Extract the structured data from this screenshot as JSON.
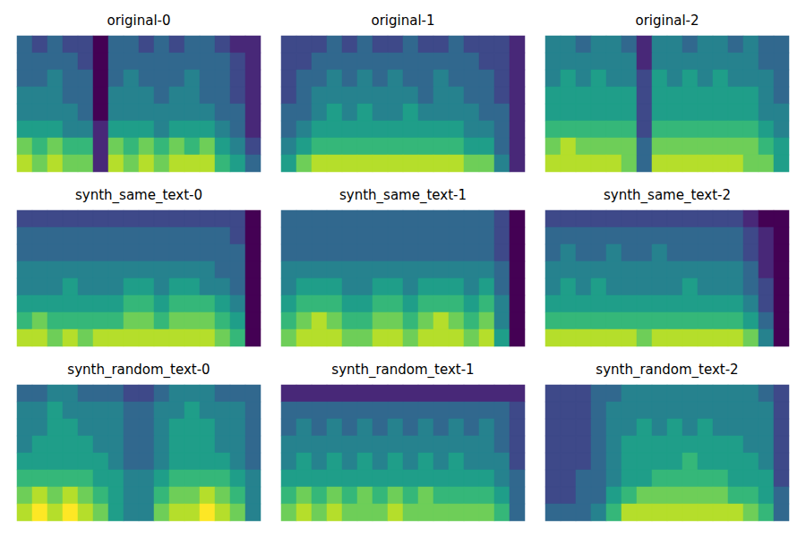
{
  "chart_data": [
    {
      "type": "heatmap",
      "title": "original-0",
      "color": "viridis",
      "tick_labels": false,
      "cells": [
        [
          3,
          2,
          3,
          2,
          2,
          0,
          3,
          3,
          2,
          3,
          2,
          3,
          3,
          2,
          1,
          1
        ],
        [
          3,
          3,
          3,
          3,
          2,
          0,
          3,
          3,
          3,
          3,
          3,
          3,
          3,
          3,
          2,
          1
        ],
        [
          3,
          3,
          4,
          3,
          3,
          0,
          3,
          4,
          3,
          3,
          3,
          4,
          3,
          3,
          2,
          1
        ],
        [
          4,
          4,
          4,
          3,
          3,
          0,
          4,
          4,
          4,
          3,
          4,
          4,
          3,
          3,
          2,
          1
        ],
        [
          4,
          4,
          4,
          4,
          3,
          0,
          4,
          4,
          4,
          4,
          4,
          4,
          4,
          3,
          3,
          1
        ],
        [
          5,
          5,
          5,
          4,
          4,
          1,
          5,
          5,
          5,
          4,
          5,
          5,
          5,
          4,
          3,
          1
        ],
        [
          7,
          6,
          7,
          6,
          6,
          1,
          7,
          6,
          7,
          6,
          7,
          6,
          7,
          5,
          4,
          2
        ],
        [
          8,
          7,
          8,
          7,
          7,
          1,
          8,
          7,
          8,
          7,
          8,
          8,
          8,
          6,
          5,
          3
        ]
      ]
    },
    {
      "type": "heatmap",
      "title": "original-1",
      "color": "viridis",
      "tick_labels": false,
      "cells": [
        [
          2,
          2,
          2,
          3,
          2,
          3,
          2,
          2,
          3,
          2,
          2,
          3,
          2,
          2,
          2,
          1
        ],
        [
          2,
          2,
          3,
          3,
          3,
          3,
          3,
          3,
          3,
          3,
          3,
          3,
          3,
          2,
          2,
          1
        ],
        [
          2,
          3,
          3,
          4,
          3,
          4,
          3,
          4,
          3,
          3,
          4,
          3,
          3,
          3,
          2,
          1
        ],
        [
          2,
          3,
          4,
          4,
          4,
          4,
          4,
          4,
          4,
          3,
          4,
          4,
          3,
          3,
          2,
          1
        ],
        [
          3,
          3,
          4,
          5,
          4,
          5,
          4,
          4,
          5,
          4,
          4,
          4,
          4,
          3,
          3,
          1
        ],
        [
          3,
          4,
          5,
          5,
          5,
          5,
          5,
          5,
          5,
          5,
          5,
          5,
          4,
          4,
          3,
          1
        ],
        [
          4,
          5,
          6,
          6,
          6,
          6,
          6,
          6,
          6,
          6,
          6,
          6,
          5,
          5,
          3,
          1
        ],
        [
          5,
          7,
          8,
          8,
          8,
          8,
          8,
          8,
          8,
          8,
          8,
          8,
          7,
          7,
          4,
          1
        ]
      ]
    },
    {
      "type": "heatmap",
      "title": "original-2",
      "color": "viridis",
      "tick_labels": false,
      "cells": [
        [
          4,
          4,
          3,
          4,
          4,
          3,
          1,
          4,
          4,
          3,
          4,
          4,
          3,
          4,
          3,
          3
        ],
        [
          4,
          4,
          4,
          4,
          4,
          4,
          1,
          4,
          4,
          4,
          4,
          4,
          4,
          4,
          3,
          3
        ],
        [
          4,
          5,
          4,
          5,
          4,
          4,
          2,
          5,
          4,
          5,
          4,
          5,
          4,
          4,
          4,
          3
        ],
        [
          5,
          5,
          5,
          5,
          5,
          5,
          2,
          5,
          5,
          5,
          5,
          5,
          5,
          5,
          4,
          3
        ],
        [
          5,
          5,
          5,
          5,
          5,
          5,
          2,
          5,
          5,
          5,
          5,
          5,
          5,
          5,
          4,
          4
        ],
        [
          6,
          6,
          6,
          6,
          6,
          6,
          2,
          6,
          6,
          6,
          6,
          6,
          6,
          6,
          5,
          4
        ],
        [
          7,
          8,
          7,
          7,
          7,
          7,
          3,
          7,
          7,
          7,
          7,
          7,
          7,
          7,
          6,
          5
        ],
        [
          8,
          8,
          8,
          8,
          8,
          7,
          3,
          8,
          8,
          8,
          8,
          8,
          8,
          7,
          7,
          5
        ]
      ]
    },
    {
      "type": "heatmap",
      "title": "synth_same_text-0",
      "color": "viridis",
      "tick_labels": false,
      "cells": [
        [
          2,
          2,
          2,
          2,
          2,
          2,
          2,
          2,
          2,
          2,
          2,
          2,
          2,
          2,
          2,
          0
        ],
        [
          3,
          3,
          3,
          3,
          3,
          3,
          3,
          3,
          3,
          3,
          3,
          3,
          3,
          3,
          2,
          0
        ],
        [
          3,
          3,
          3,
          3,
          3,
          3,
          3,
          3,
          3,
          3,
          3,
          3,
          3,
          3,
          3,
          0
        ],
        [
          4,
          4,
          4,
          4,
          4,
          4,
          4,
          4,
          4,
          4,
          4,
          4,
          4,
          3,
          3,
          0
        ],
        [
          4,
          4,
          4,
          5,
          4,
          4,
          4,
          5,
          5,
          4,
          5,
          5,
          4,
          4,
          3,
          0
        ],
        [
          5,
          5,
          5,
          5,
          5,
          5,
          5,
          6,
          6,
          5,
          6,
          6,
          6,
          5,
          4,
          0
        ],
        [
          6,
          7,
          6,
          6,
          6,
          6,
          6,
          7,
          7,
          6,
          7,
          7,
          7,
          6,
          5,
          0
        ],
        [
          8,
          8,
          7,
          8,
          7,
          8,
          8,
          8,
          8,
          8,
          8,
          8,
          8,
          7,
          6,
          0
        ]
      ]
    },
    {
      "type": "heatmap",
      "title": "synth_same_text-1",
      "color": "viridis",
      "tick_labels": false,
      "cells": [
        [
          3,
          3,
          3,
          3,
          3,
          3,
          3,
          3,
          3,
          3,
          3,
          3,
          3,
          3,
          2,
          0
        ],
        [
          3,
          3,
          3,
          3,
          3,
          3,
          3,
          3,
          3,
          3,
          3,
          3,
          3,
          3,
          2,
          0
        ],
        [
          3,
          3,
          3,
          3,
          3,
          3,
          3,
          3,
          3,
          3,
          3,
          3,
          3,
          3,
          2,
          0
        ],
        [
          4,
          4,
          4,
          4,
          4,
          4,
          4,
          4,
          4,
          4,
          4,
          4,
          4,
          4,
          3,
          0
        ],
        [
          4,
          5,
          5,
          5,
          4,
          4,
          5,
          5,
          4,
          5,
          5,
          5,
          4,
          5,
          3,
          0
        ],
        [
          5,
          6,
          6,
          6,
          5,
          5,
          6,
          6,
          5,
          6,
          6,
          6,
          5,
          6,
          4,
          0
        ],
        [
          6,
          7,
          8,
          7,
          6,
          6,
          7,
          7,
          6,
          7,
          8,
          7,
          6,
          7,
          4,
          0
        ],
        [
          7,
          8,
          8,
          8,
          7,
          7,
          8,
          8,
          7,
          8,
          8,
          8,
          7,
          8,
          5,
          0
        ]
      ]
    },
    {
      "type": "heatmap",
      "title": "synth_same_text-2",
      "color": "viridis",
      "tick_labels": false,
      "cells": [
        [
          2,
          2,
          2,
          2,
          2,
          2,
          2,
          2,
          2,
          2,
          2,
          2,
          2,
          1,
          0,
          0
        ],
        [
          3,
          3,
          3,
          3,
          3,
          3,
          3,
          3,
          3,
          3,
          3,
          3,
          3,
          2,
          1,
          0
        ],
        [
          3,
          4,
          3,
          3,
          4,
          3,
          3,
          4,
          3,
          3,
          3,
          3,
          3,
          2,
          1,
          0
        ],
        [
          4,
          4,
          4,
          4,
          4,
          4,
          4,
          4,
          4,
          4,
          4,
          4,
          4,
          3,
          1,
          0
        ],
        [
          4,
          5,
          4,
          5,
          4,
          4,
          4,
          4,
          4,
          5,
          4,
          4,
          4,
          3,
          2,
          0
        ],
        [
          5,
          5,
          5,
          5,
          5,
          5,
          5,
          5,
          5,
          5,
          5,
          5,
          5,
          4,
          2,
          0
        ],
        [
          6,
          6,
          6,
          6,
          6,
          6,
          6,
          6,
          6,
          6,
          6,
          6,
          6,
          5,
          3,
          0
        ],
        [
          8,
          8,
          8,
          8,
          8,
          8,
          7,
          8,
          8,
          8,
          8,
          8,
          8,
          7,
          4,
          0
        ]
      ]
    },
    {
      "type": "heatmap",
      "title": "synth_random_text-0",
      "color": "viridis",
      "tick_labels": false,
      "cells": [
        [
          3,
          3,
          4,
          4,
          3,
          3,
          3,
          2,
          2,
          3,
          4,
          4,
          4,
          3,
          3,
          3
        ],
        [
          4,
          4,
          5,
          4,
          4,
          4,
          4,
          3,
          3,
          4,
          4,
          5,
          4,
          4,
          4,
          3
        ],
        [
          4,
          4,
          5,
          5,
          4,
          4,
          4,
          3,
          3,
          4,
          5,
          5,
          5,
          4,
          4,
          3
        ],
        [
          4,
          5,
          5,
          5,
          5,
          4,
          4,
          3,
          3,
          4,
          5,
          5,
          5,
          4,
          4,
          3
        ],
        [
          5,
          5,
          5,
          5,
          5,
          5,
          4,
          3,
          3,
          4,
          5,
          5,
          5,
          5,
          4,
          3
        ],
        [
          6,
          6,
          6,
          6,
          6,
          5,
          5,
          4,
          4,
          5,
          6,
          6,
          6,
          6,
          5,
          4
        ],
        [
          7,
          8,
          7,
          8,
          7,
          6,
          5,
          4,
          4,
          6,
          7,
          7,
          8,
          7,
          6,
          4
        ],
        [
          8,
          9,
          8,
          9,
          8,
          7,
          5,
          4,
          4,
          7,
          8,
          8,
          9,
          8,
          7,
          4
        ]
      ]
    },
    {
      "type": "heatmap",
      "title": "synth_random_text-1",
      "color": "viridis",
      "tick_labels": false,
      "cells": [
        [
          1,
          1,
          1,
          1,
          1,
          1,
          1,
          1,
          1,
          1,
          1,
          1,
          1,
          1,
          1,
          1
        ],
        [
          3,
          3,
          3,
          3,
          3,
          3,
          3,
          3,
          3,
          3,
          3,
          3,
          3,
          3,
          3,
          2
        ],
        [
          3,
          4,
          3,
          4,
          3,
          4,
          3,
          4,
          3,
          4,
          3,
          4,
          3,
          4,
          3,
          2
        ],
        [
          4,
          4,
          4,
          4,
          4,
          4,
          4,
          4,
          4,
          4,
          4,
          4,
          4,
          4,
          3,
          2
        ],
        [
          4,
          5,
          4,
          5,
          4,
          5,
          4,
          5,
          4,
          5,
          4,
          5,
          4,
          4,
          4,
          2
        ],
        [
          5,
          5,
          5,
          5,
          5,
          5,
          5,
          5,
          5,
          5,
          5,
          5,
          5,
          5,
          4,
          3
        ],
        [
          6,
          7,
          6,
          7,
          6,
          7,
          6,
          7,
          6,
          7,
          6,
          6,
          6,
          6,
          5,
          3
        ],
        [
          7,
          8,
          7,
          8,
          7,
          7,
          7,
          8,
          7,
          7,
          7,
          7,
          7,
          7,
          6,
          3
        ]
      ]
    },
    {
      "type": "heatmap",
      "title": "synth_random_text-2",
      "color": "viridis",
      "tick_labels": false,
      "cells": [
        [
          2,
          2,
          2,
          3,
          3,
          4,
          4,
          4,
          4,
          4,
          4,
          4,
          4,
          4,
          3,
          2
        ],
        [
          2,
          2,
          2,
          3,
          4,
          4,
          4,
          4,
          4,
          4,
          4,
          4,
          4,
          4,
          4,
          2
        ],
        [
          2,
          2,
          2,
          3,
          4,
          4,
          5,
          4,
          5,
          4,
          5,
          4,
          4,
          4,
          4,
          2
        ],
        [
          2,
          2,
          2,
          3,
          4,
          5,
          5,
          5,
          5,
          5,
          5,
          5,
          5,
          4,
          4,
          2
        ],
        [
          2,
          2,
          2,
          3,
          4,
          5,
          5,
          5,
          5,
          6,
          5,
          5,
          5,
          5,
          4,
          2
        ],
        [
          2,
          2,
          3,
          3,
          4,
          5,
          5,
          6,
          6,
          6,
          6,
          6,
          5,
          5,
          5,
          2
        ],
        [
          2,
          2,
          3,
          3,
          5,
          6,
          7,
          7,
          7,
          7,
          7,
          7,
          6,
          6,
          5,
          3
        ],
        [
          3,
          3,
          3,
          4,
          6,
          8,
          8,
          8,
          8,
          8,
          8,
          8,
          8,
          7,
          6,
          3
        ]
      ]
    }
  ]
}
